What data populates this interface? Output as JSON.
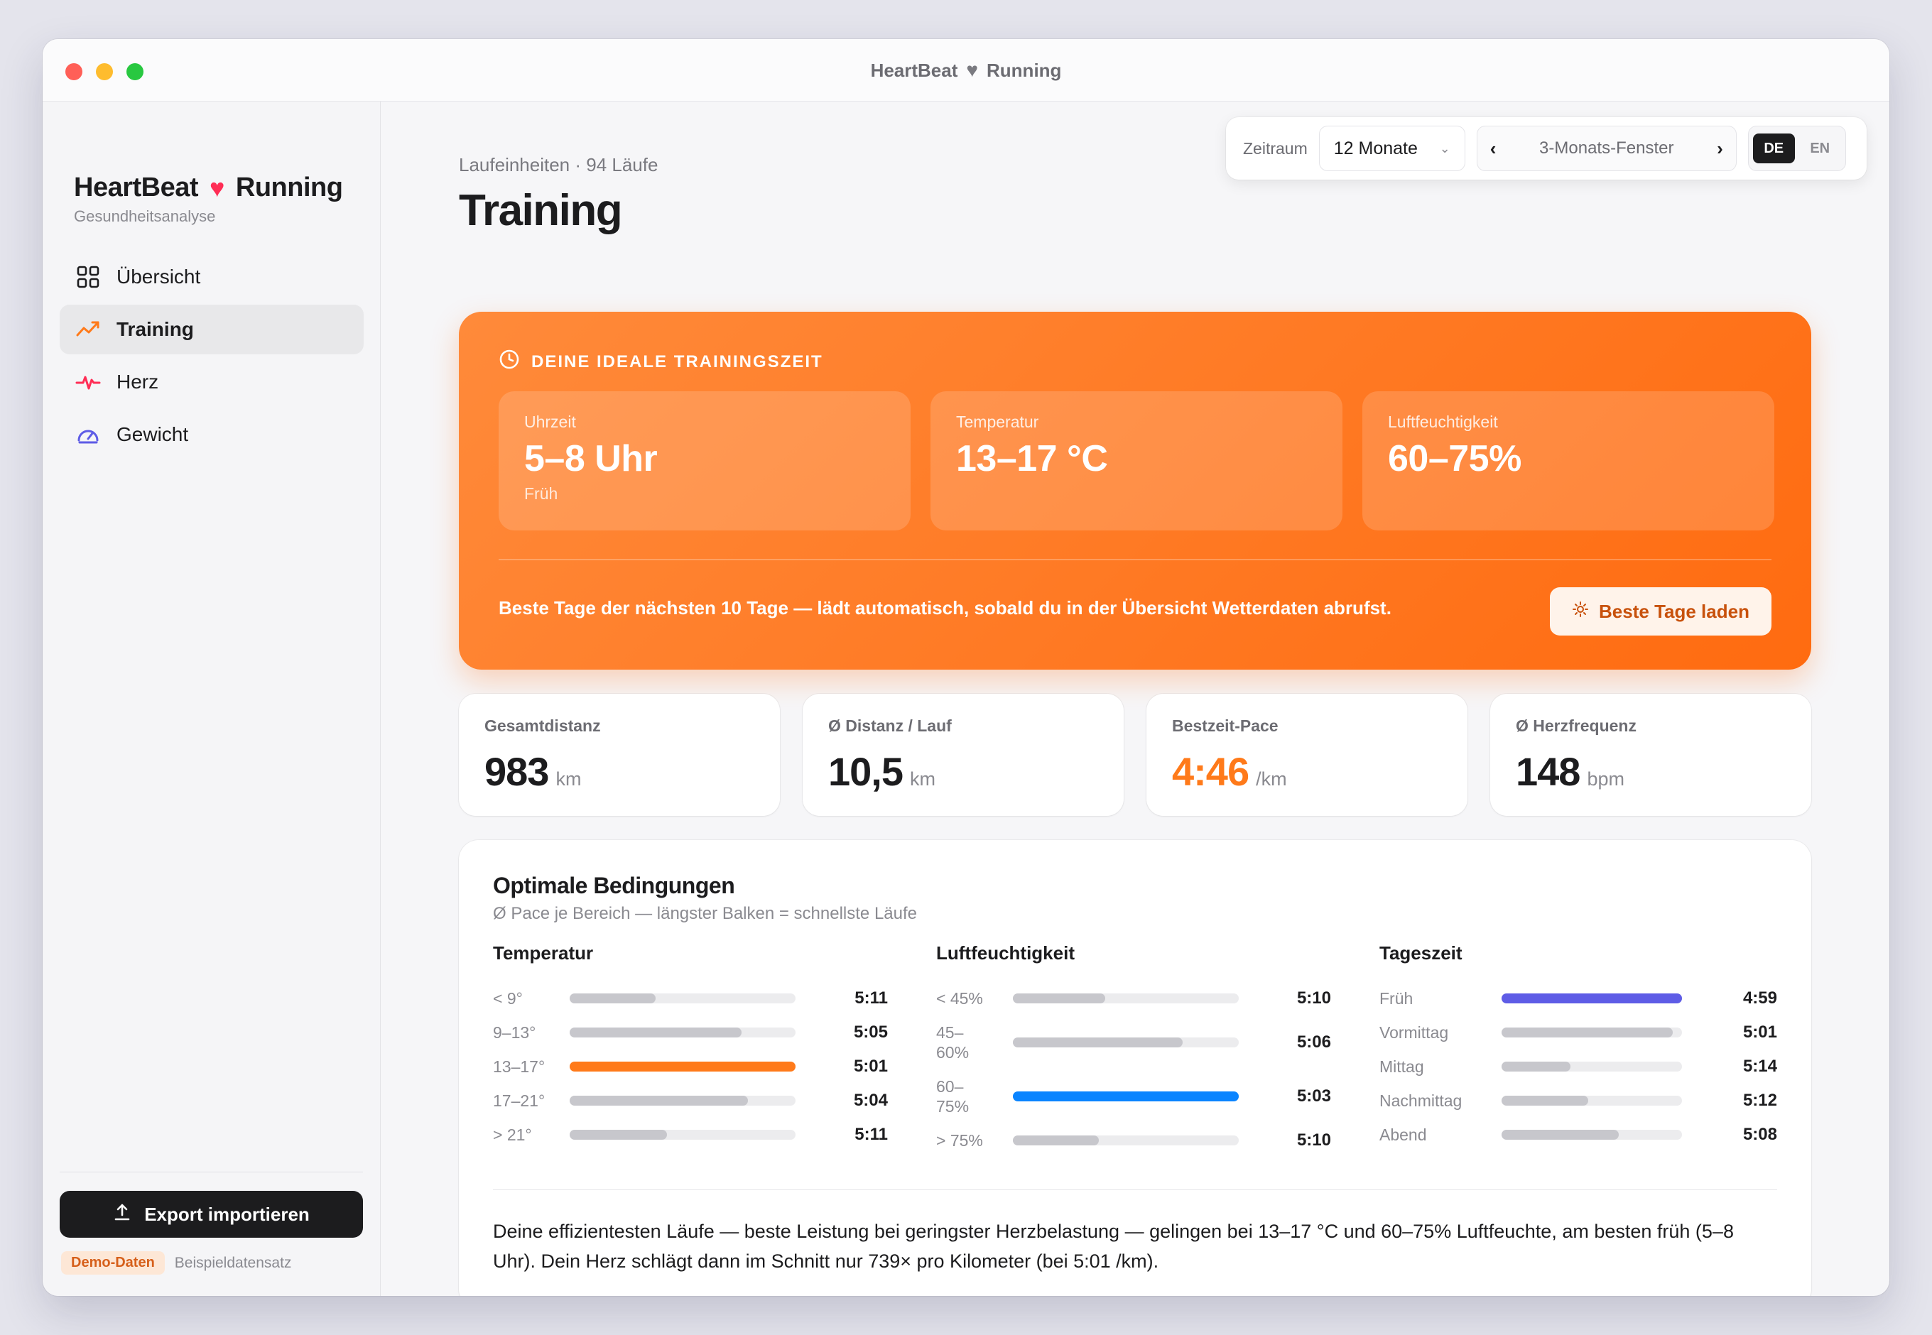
{
  "window": {
    "title_left": "HeartBeat",
    "title_right": "Running"
  },
  "brand": {
    "name_left": "HeartBeat",
    "name_right": "Running",
    "subtitle": "Gesundheitsanalyse",
    "accent": "#ff2d55"
  },
  "sidebar": {
    "items": [
      {
        "label": "Übersicht",
        "icon": "grid-icon",
        "active": false
      },
      {
        "label": "Training",
        "icon": "trend-icon",
        "active": true
      },
      {
        "label": "Herz",
        "icon": "pulse-icon",
        "active": false
      },
      {
        "label": "Gewicht",
        "icon": "gauge-icon",
        "active": false
      }
    ],
    "export_label": "Export importieren",
    "demo_badge": "Demo-Daten",
    "demo_text": "Beispieldatensatz"
  },
  "header": {
    "eyebrow": "Laufeinheiten · 94 Läufe",
    "title": "Training"
  },
  "toolbar": {
    "range_label": "Zeitraum",
    "range_value": "12 Monate",
    "window_prev": "‹",
    "window_label": "3-Monats-Fenster",
    "window_next": "›",
    "lang_de": "DE",
    "lang_en": "EN",
    "lang_active": "DE"
  },
  "hero": {
    "heading": "DEINE IDEALE TRAININGSZEIT",
    "cards": [
      {
        "label": "Uhrzeit",
        "value": "5–8 Uhr",
        "sub": "Früh"
      },
      {
        "label": "Temperatur",
        "value": "13–17 °C",
        "sub": ""
      },
      {
        "label": "Luftfeuchtigkeit",
        "value": "60–75%",
        "sub": ""
      }
    ],
    "note": "Beste Tage der nächsten 10 Tage — lädt automatisch, sobald du in der Übersicht Wetterdaten abrufst.",
    "button": "Beste Tage laden",
    "color_start": "#ff8a3a",
    "color_end": "#ff6b10"
  },
  "stats": [
    {
      "label": "Gesamtdistanz",
      "value": "983",
      "unit": "km",
      "highlight": false
    },
    {
      "label": "Ø Distanz / Lauf",
      "value": "10,5",
      "unit": "km",
      "highlight": false
    },
    {
      "label": "Bestzeit-Pace",
      "value": "4:46",
      "unit": "/km",
      "highlight": true
    },
    {
      "label": "Ø Herzfrequenz",
      "value": "148",
      "unit": "bpm",
      "highlight": false
    }
  ],
  "conditions": {
    "title": "Optimale Bedingungen",
    "subtitle": "Ø Pace je Bereich — längster Balken = schnellste Läufe",
    "columns": [
      {
        "title": "Temperatur",
        "highlight_color": "#ff7a1a",
        "rows": [
          {
            "label": "< 9°",
            "value": "5:11",
            "fill": 0.38,
            "best": false
          },
          {
            "label": "9–13°",
            "value": "5:05",
            "fill": 0.76,
            "best": false
          },
          {
            "label": "13–17°",
            "value": "5:01",
            "fill": 1.0,
            "best": true
          },
          {
            "label": "17–21°",
            "value": "5:04",
            "fill": 0.79,
            "best": false
          },
          {
            "label": "> 21°",
            "value": "5:11",
            "fill": 0.43,
            "best": false
          }
        ]
      },
      {
        "title": "Luftfeuchtigkeit",
        "highlight_color": "#0a84ff",
        "rows": [
          {
            "label": "< 45%",
            "value": "5:10",
            "fill": 0.41,
            "best": false
          },
          {
            "label": "45–60%",
            "value": "5:06",
            "fill": 0.75,
            "best": false
          },
          {
            "label": "60–75%",
            "value": "5:03",
            "fill": 1.0,
            "best": true
          },
          {
            "label": "> 75%",
            "value": "5:10",
            "fill": 0.38,
            "best": false
          }
        ]
      },
      {
        "title": "Tageszeit",
        "highlight_color": "#5e5ce6",
        "rows": [
          {
            "label": "Früh",
            "value": "4:59",
            "fill": 1.0,
            "best": true
          },
          {
            "label": "Vormittag",
            "value": "5:01",
            "fill": 0.95,
            "best": false
          },
          {
            "label": "Mittag",
            "value": "5:14",
            "fill": 0.38,
            "best": false
          },
          {
            "label": "Nachmittag",
            "value": "5:12",
            "fill": 0.48,
            "best": false
          },
          {
            "label": "Abend",
            "value": "5:08",
            "fill": 0.65,
            "best": false
          }
        ]
      }
    ],
    "summary": "Deine effizientesten Läufe — beste Leistung bei geringster Herzbelastung — gelingen bei 13–17 °C und 60–75% Luftfeuchte, am besten früh (5–8 Uhr). Dein Herz schlägt dann im Schnitt nur 739× pro Kilometer (bei 5:01 /km)."
  }
}
